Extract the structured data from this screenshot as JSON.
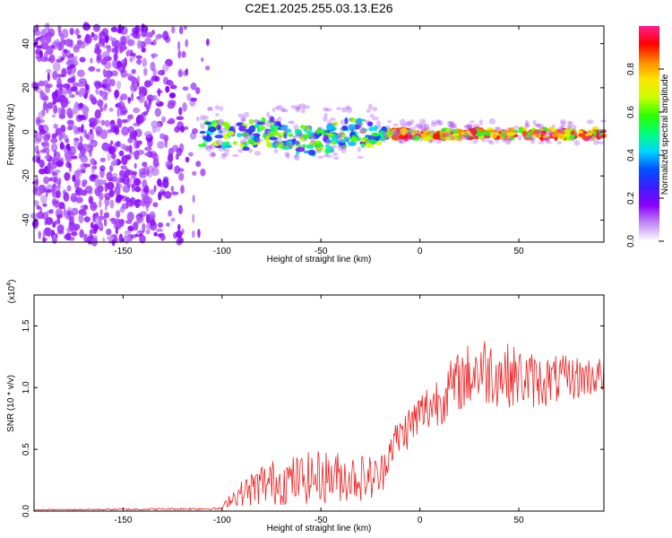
{
  "chart_data": [
    {
      "type": "heatmap",
      "title": "C2E1.2025.255.03.13.E26",
      "xlabel": "Height of straight line (km)",
      "ylabel": "Frequency (Hz)",
      "xlim": [
        -195,
        93
      ],
      "ylim": [
        -50,
        48
      ],
      "xticks": [
        "-150",
        "-100",
        "-50",
        "0",
        "50"
      ],
      "yticks": [
        "-40",
        "-20",
        "0",
        "20",
        "40"
      ],
      "colorbar": {
        "label": "Normalized spectral amplitude",
        "range": [
          0,
          1
        ],
        "ticks": [
          "0.0",
          "0.2",
          "0.4",
          "0.6",
          "0.8"
        ],
        "colors": [
          "#ffffff",
          "#c18cf2",
          "#8a00ff",
          "#3b1dff",
          "#0050ff",
          "#00d4ff",
          "#00ff7a",
          "#2bff00",
          "#c8ff00",
          "#ffe600",
          "#ff8a00",
          "#ff0000",
          "#ff1f8f"
        ]
      },
      "features": {
        "noise_region_km": [
          -195,
          -105
        ],
        "signal_band_km": [
          -110,
          93
        ],
        "signal_center_hz": 0
      }
    },
    {
      "type": "line",
      "xlabel": "Height of straight line (km)",
      "ylabel": "SNR (10 * v/v)",
      "exponent_label": "(x10",
      "exponent_power": "4",
      "exponent_close": ")",
      "xlim": [
        -195,
        93
      ],
      "ylim": [
        0,
        1.75
      ],
      "xticks": [
        "-150",
        "-100",
        "-50",
        "0",
        "50"
      ],
      "yticks": [
        "0.0",
        "0.5",
        "1.0",
        "1.5"
      ],
      "series": [
        {
          "name": "SNR",
          "color": "#ee2222",
          "envelope_km": [
            -195,
            -100,
            -96,
            -80,
            -50,
            -20,
            -15,
            0,
            20,
            30,
            60,
            93
          ],
          "envelope_mean": [
            0.01,
            0.02,
            0.1,
            0.22,
            0.28,
            0.27,
            0.52,
            0.78,
            1.05,
            1.15,
            1.05,
            1.1
          ],
          "envelope_spread": [
            0.005,
            0.01,
            0.06,
            0.18,
            0.22,
            0.18,
            0.15,
            0.2,
            0.25,
            0.3,
            0.22,
            0.15
          ]
        }
      ]
    }
  ]
}
